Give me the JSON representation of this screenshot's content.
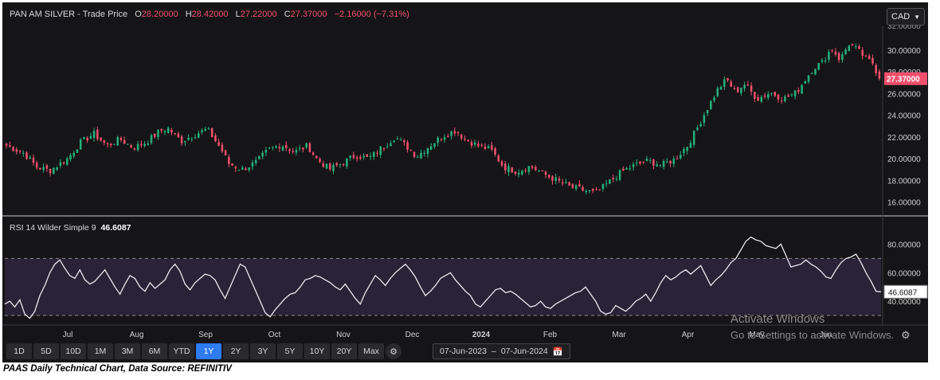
{
  "header": {
    "instrument": "PAN AM SILVER - Trade Price",
    "open_label": "O",
    "open": "28.20000",
    "high_label": "H",
    "high": "28.42000",
    "low_label": "L",
    "low": "27.22000",
    "close_label": "C",
    "close": "27.37000",
    "change": "−2.16000 (−7.31%)"
  },
  "currency": "CAD",
  "rsi": {
    "label": "RSI 14 Wilder Simple 9",
    "value": "46.6087"
  },
  "price_axis_top_tick": "32.00000",
  "last_price_tag": "27.37000",
  "rsi_last_tag": "46.6087",
  "time_buttons": [
    "1D",
    "5D",
    "10D",
    "1M",
    "3M",
    "6M",
    "YTD",
    "1Y",
    "2Y",
    "3Y",
    "5Y",
    "10Y",
    "20Y",
    "Max"
  ],
  "active_button": "1Y",
  "date_range": {
    "from": "07-Jun-2023",
    "sep": "–",
    "to": "07-Jun-2024"
  },
  "watermark": {
    "line1": "Activate Windows",
    "line2": "Go to Settings to activate Windows."
  },
  "caption": "PAAS Daily Technical Chart, Data Source: REFINITIV",
  "colors": {
    "up": "#26b07a",
    "down": "#f0506e",
    "background": "#151517",
    "rsi_line": "#e8e8ee",
    "rsi_band": "#2a2236"
  },
  "chart_data": [
    {
      "type": "candlestick",
      "title": "PAN AM SILVER - Trade Price",
      "x_labels": [
        "Jul",
        "Aug",
        "Sep",
        "Oct",
        "Nov",
        "Dec",
        "2024",
        "Feb",
        "Mar",
        "Apr",
        "May",
        "Jun"
      ],
      "yticks": [
        "16.00000",
        "18.00000",
        "20.00000",
        "22.00000",
        "24.00000",
        "26.00000",
        "28.00000",
        "30.00000"
      ],
      "ylim": [
        15.3,
        32.2
      ],
      "anchors": [
        [
          0,
          21.2
        ],
        [
          8,
          20.5
        ],
        [
          14,
          19.2
        ],
        [
          20,
          18.9
        ],
        [
          28,
          20.0
        ],
        [
          34,
          21.5
        ],
        [
          40,
          22.3
        ],
        [
          46,
          21.2
        ],
        [
          52,
          21.8
        ],
        [
          58,
          21.0
        ],
        [
          64,
          21.5
        ],
        [
          70,
          22.5
        ],
        [
          74,
          22.8
        ],
        [
          80,
          21.6
        ],
        [
          86,
          22.2
        ],
        [
          92,
          22.7
        ],
        [
          98,
          21.0
        ],
        [
          102,
          19.5
        ],
        [
          108,
          19.0
        ],
        [
          114,
          19.6
        ],
        [
          120,
          20.8
        ],
        [
          126,
          21.3
        ],
        [
          132,
          20.6
        ],
        [
          138,
          21.2
        ],
        [
          142,
          20.0
        ],
        [
          148,
          19.0
        ],
        [
          154,
          19.6
        ],
        [
          160,
          20.3
        ],
        [
          166,
          20.0
        ],
        [
          172,
          21.0
        ],
        [
          178,
          22.0
        ],
        [
          184,
          21.0
        ],
        [
          188,
          20.2
        ],
        [
          194,
          21.2
        ],
        [
          200,
          22.1
        ],
        [
          206,
          22.6
        ],
        [
          210,
          21.8
        ],
        [
          216,
          21.2
        ],
        [
          222,
          20.8
        ],
        [
          228,
          19.2
        ],
        [
          234,
          18.8
        ],
        [
          240,
          19.3
        ],
        [
          246,
          18.6
        ],
        [
          252,
          18.0
        ],
        [
          258,
          17.4
        ],
        [
          262,
          17.2
        ],
        [
          266,
          17.0
        ],
        [
          270,
          16.8
        ],
        [
          276,
          17.8
        ],
        [
          282,
          18.8
        ],
        [
          288,
          19.4
        ],
        [
          294,
          19.8
        ],
        [
          300,
          19.4
        ],
        [
          306,
          19.9
        ],
        [
          312,
          21.2
        ],
        [
          316,
          22.6
        ],
        [
          320,
          24.2
        ],
        [
          326,
          26.4
        ],
        [
          330,
          27.3
        ],
        [
          334,
          26.1
        ],
        [
          338,
          26.9
        ],
        [
          344,
          25.5
        ],
        [
          350,
          26.1
        ],
        [
          356,
          25.5
        ],
        [
          362,
          26.1
        ],
        [
          366,
          27.3
        ],
        [
          370,
          28.4
        ],
        [
          374,
          28.9
        ],
        [
          378,
          30.2
        ],
        [
          382,
          29.1
        ],
        [
          386,
          30.6
        ],
        [
          390,
          30.0
        ],
        [
          394,
          29.2
        ],
        [
          397,
          28.8
        ],
        [
          400,
          27.4
        ]
      ],
      "last_close": 27.37,
      "last_change": -2.16,
      "last_change_pct": -7.31
    },
    {
      "type": "line",
      "title": "RSI 14 Wilder Simple 9",
      "yticks": [
        "40.00000",
        "60.00000",
        "80.00000"
      ],
      "ylim": [
        25,
        92
      ],
      "band": [
        30,
        70
      ],
      "last_value": 46.6087,
      "points": [
        38,
        40,
        36,
        41,
        31,
        28,
        33,
        44,
        51,
        60,
        66,
        69,
        63,
        58,
        56,
        62,
        55,
        52,
        54,
        58,
        62,
        56,
        50,
        45,
        52,
        58,
        56,
        50,
        47,
        53,
        49,
        52,
        55,
        62,
        66,
        61,
        52,
        48,
        53,
        56,
        59,
        58,
        55,
        48,
        42,
        50,
        58,
        66,
        64,
        56,
        48,
        40,
        32,
        29,
        34,
        38,
        42,
        45,
        46,
        50,
        55,
        56,
        58,
        57,
        55,
        53,
        50,
        48,
        52,
        47,
        42,
        38,
        46,
        52,
        58,
        55,
        51,
        56,
        60,
        63,
        66,
        62,
        57,
        50,
        44,
        47,
        51,
        56,
        58,
        60,
        55,
        51,
        47,
        44,
        38,
        36,
        40,
        44,
        48,
        49,
        46,
        47,
        45,
        42,
        39,
        36,
        37,
        40,
        36,
        35,
        38,
        40,
        42,
        44,
        46,
        47,
        50,
        45,
        40,
        33,
        31,
        32,
        37,
        35,
        33,
        36,
        40,
        42,
        45,
        40,
        46,
        53,
        58,
        55,
        57,
        60,
        62,
        59,
        62,
        65,
        58,
        51,
        55,
        58,
        62,
        67,
        70,
        76,
        82,
        85,
        83,
        82,
        79,
        78,
        77,
        80,
        72,
        64,
        65,
        66,
        69,
        66,
        64,
        61,
        57,
        56,
        62,
        67,
        70,
        71,
        73,
        67,
        60,
        54,
        47,
        46.6
      ]
    }
  ]
}
